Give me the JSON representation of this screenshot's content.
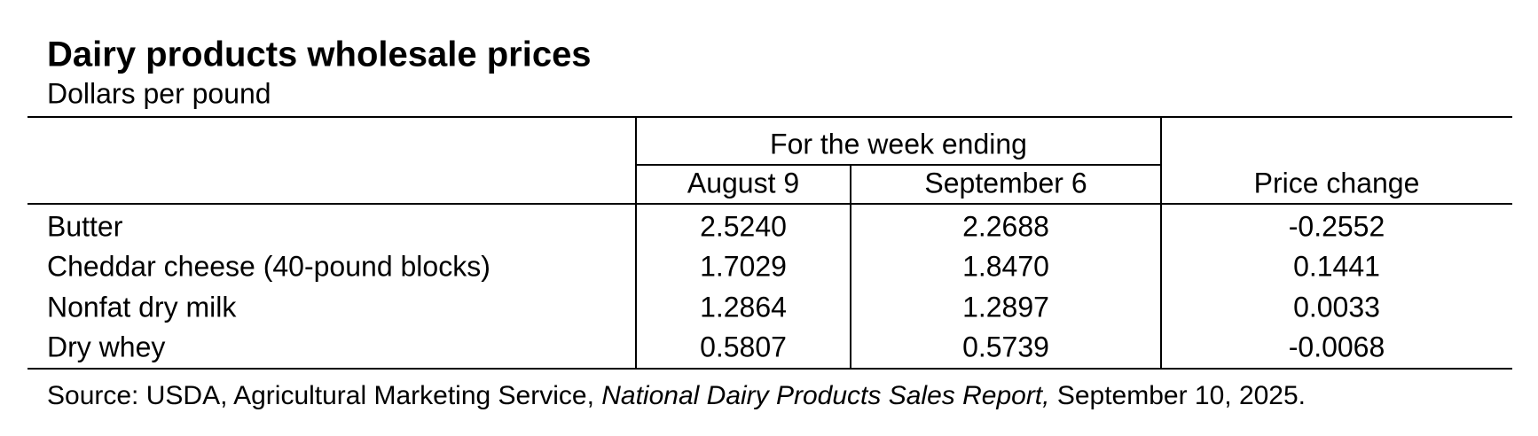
{
  "title": "Dairy products wholesale prices",
  "subtitle": "Dollars per pound",
  "table": {
    "group_header": "For the week ending",
    "columns": [
      "August 9",
      "September 6",
      "Price change"
    ],
    "rows": [
      [
        "Butter",
        "2.5240",
        "2.2688",
        "-0.2552"
      ],
      [
        "Cheddar cheese (40-pound blocks)",
        "1.7029",
        "1.8470",
        "0.1441"
      ],
      [
        "Nonfat dry milk",
        "1.2864",
        "1.2897",
        "0.0033"
      ],
      [
        "Dry whey",
        "0.5807",
        "0.5739",
        "-0.0068"
      ]
    ]
  },
  "source": [
    "Source: USDA, Agricultural Marketing Service, ",
    "National Dairy Products Sales Report,",
    " September 10, 2025."
  ]
}
